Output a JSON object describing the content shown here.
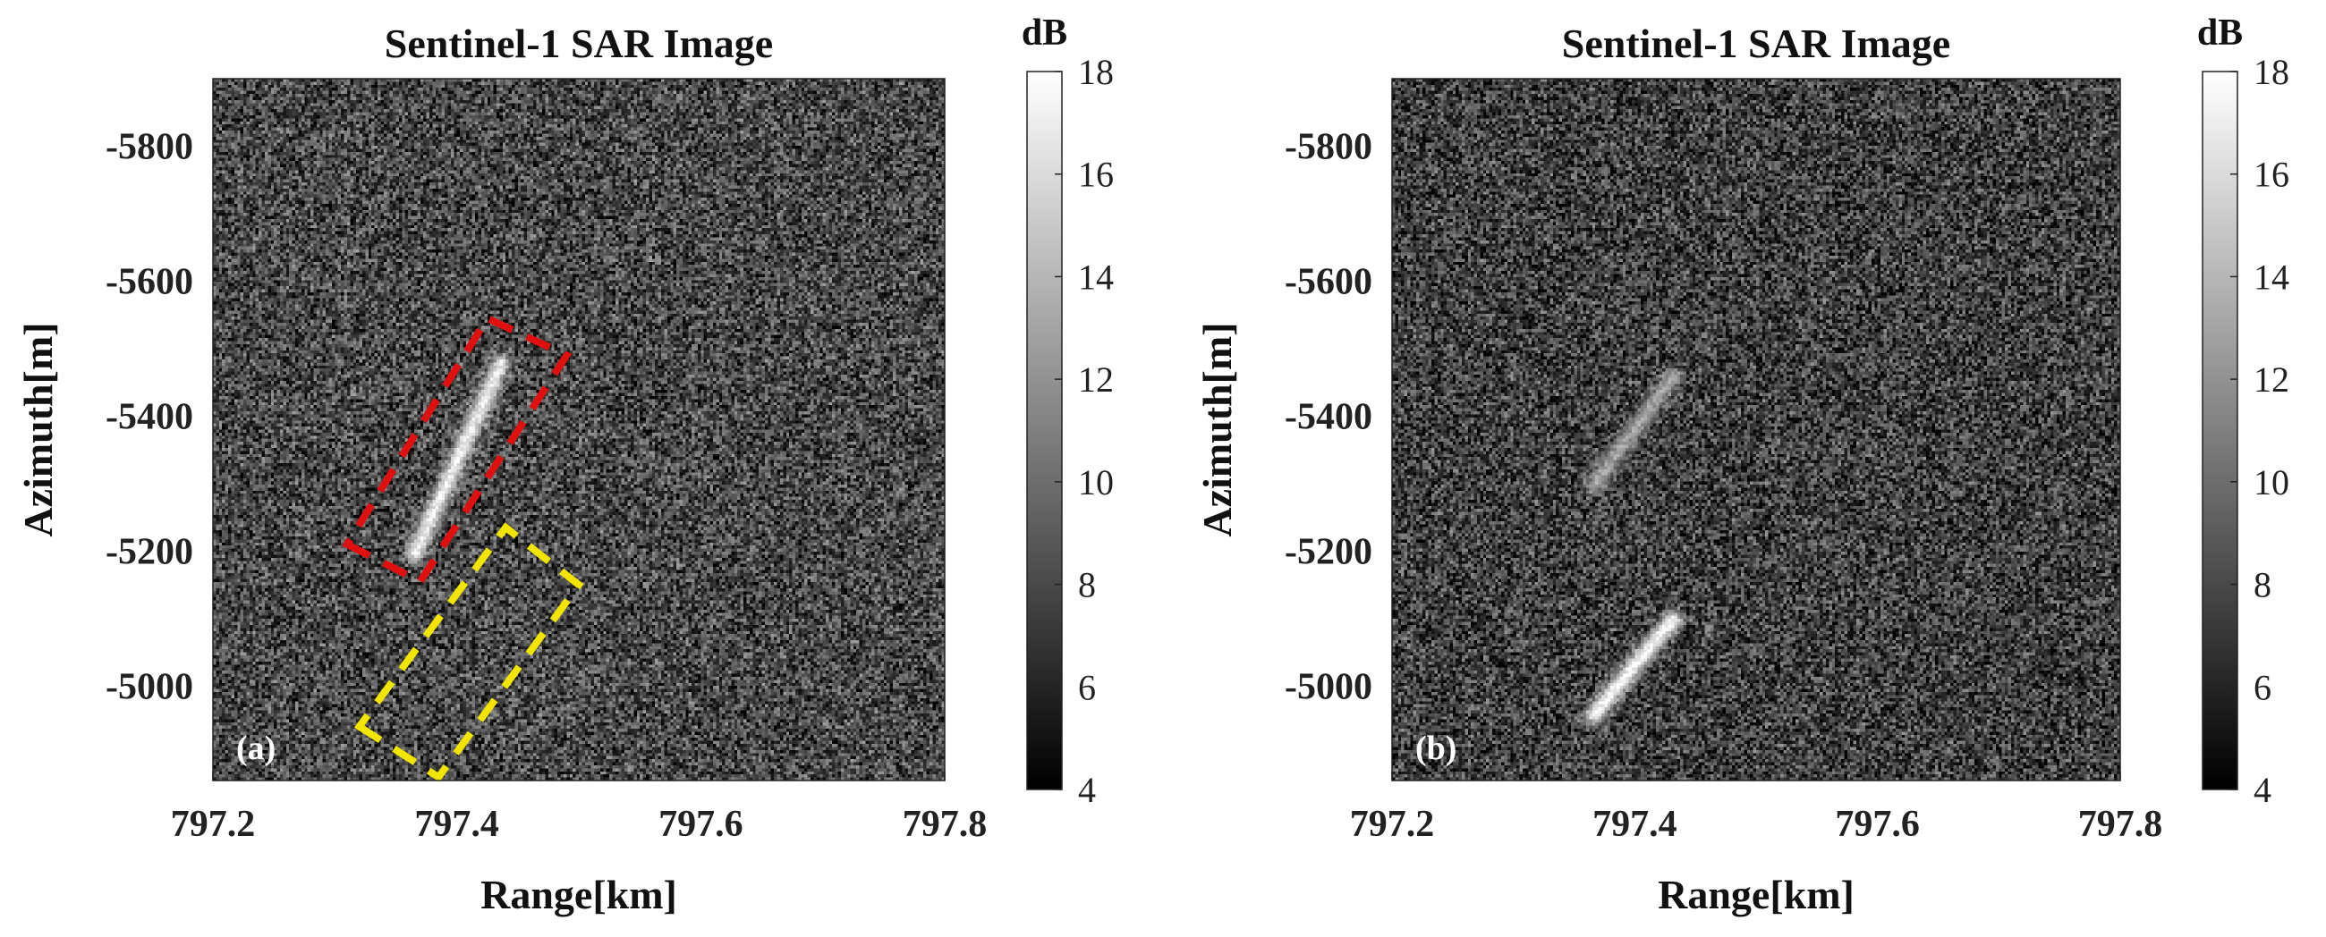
{
  "chart_data": [
    {
      "type": "heatmap",
      "title": "Sentinel-1 SAR Image",
      "panel_label": "(a)",
      "xlabel": "Range[km]",
      "ylabel": "Azimuth[m]",
      "xlim": [
        797.2,
        797.8
      ],
      "ylim": [
        -5900,
        -4860
      ],
      "x_ticks": [
        797.2,
        797.4,
        797.6,
        797.8
      ],
      "y_ticks": [
        -5800,
        -5600,
        -5400,
        -5200,
        -5000
      ],
      "x_tick_labels": [
        "797.2",
        "797.4",
        "797.6",
        "797.8"
      ],
      "y_tick_labels": [
        "-5800",
        "-5600",
        "-5400",
        "-5200",
        "-5000"
      ],
      "y_reversed": true,
      "colorbar": {
        "label": "dB",
        "range": [
          4,
          18
        ],
        "ticks": [
          4,
          6,
          8,
          10,
          12,
          14,
          16,
          18
        ],
        "tick_labels": [
          "4",
          "6",
          "8",
          "10",
          "12",
          "14",
          "16",
          "18"
        ],
        "colormap": "gray"
      },
      "background_level_db": 8,
      "bright_targets": [
        {
          "from": [
            797.365,
            -5200
          ],
          "to": [
            797.435,
            -5480
          ],
          "level_db": 17
        }
      ],
      "boxes": [
        {
          "color": "#e01010",
          "corners": [
            [
              797.31,
              -5210
            ],
            [
              797.37,
              -5155
            ],
            [
              797.49,
              -5490
            ],
            [
              797.425,
              -5545
            ]
          ]
        },
        {
          "color": "#f2e600",
          "corners": [
            [
              797.32,
              -4940
            ],
            [
              797.385,
              -4865
            ],
            [
              797.5,
              -5150
            ],
            [
              797.44,
              -5235
            ]
          ]
        }
      ]
    },
    {
      "type": "heatmap",
      "title": "Sentinel-1 SAR Image",
      "panel_label": "(b)",
      "xlabel": "Range[km]",
      "ylabel": "Azimuth[m]",
      "xlim": [
        797.2,
        797.8
      ],
      "ylim": [
        -5900,
        -4860
      ],
      "x_ticks": [
        797.2,
        797.4,
        797.6,
        797.8
      ],
      "y_ticks": [
        -5800,
        -5600,
        -5400,
        -5200,
        -5000
      ],
      "x_tick_labels": [
        "797.2",
        "797.4",
        "797.6",
        "797.8"
      ],
      "y_tick_labels": [
        "-5800",
        "-5600",
        "-5400",
        "-5200",
        "-5000"
      ],
      "y_reversed": true,
      "colorbar": {
        "label": "dB",
        "range": [
          4,
          18
        ],
        "ticks": [
          4,
          6,
          8,
          10,
          12,
          14,
          16,
          18
        ],
        "tick_labels": [
          "4",
          "6",
          "8",
          "10",
          "12",
          "14",
          "16",
          "18"
        ],
        "colormap": "gray"
      },
      "background_level_db": 7.5,
      "bright_targets": [
        {
          "from": [
            797.365,
            -4960
          ],
          "to": [
            797.43,
            -5100
          ],
          "level_db": 17.5
        },
        {
          "from": [
            797.365,
            -5300
          ],
          "to": [
            797.43,
            -5460
          ],
          "level_db": 13
        }
      ],
      "boxes": []
    }
  ]
}
